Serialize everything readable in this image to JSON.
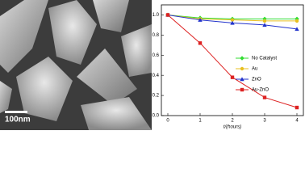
{
  "image_label": "100nm",
  "chart_data": {
    "type": "line",
    "xlabel": "t/(hours)",
    "x": [
      0,
      1,
      2,
      3,
      4
    ],
    "xlim": [
      -0.2,
      4.2
    ],
    "xticks": [
      0,
      1,
      2,
      3,
      4
    ],
    "ylim": [
      0,
      1.1
    ],
    "yticks": [
      {
        "value": 0,
        "label": "0.0"
      },
      0.2,
      0.4,
      0.6,
      0.8,
      {
        "value": 1,
        "label": "1.0"
      }
    ],
    "legend": "center-right",
    "series": [
      {
        "name": "No Catalyst",
        "color": "#33dd33",
        "marker": "diamond",
        "values": [
          1.0,
          0.97,
          0.96,
          0.96,
          0.96
        ]
      },
      {
        "name": "Au",
        "color": "#e8c020",
        "marker": "circle",
        "values": [
          1.0,
          0.96,
          0.95,
          0.94,
          0.94
        ]
      },
      {
        "name": "ZnO",
        "color": "#2233cc",
        "marker": "triangle",
        "values": [
          1.0,
          0.95,
          0.92,
          0.9,
          0.86
        ]
      },
      {
        "name": "Au-ZnO",
        "color": "#dd2222",
        "marker": "square",
        "values": [
          1.0,
          0.72,
          0.38,
          0.18,
          0.08
        ]
      }
    ]
  }
}
